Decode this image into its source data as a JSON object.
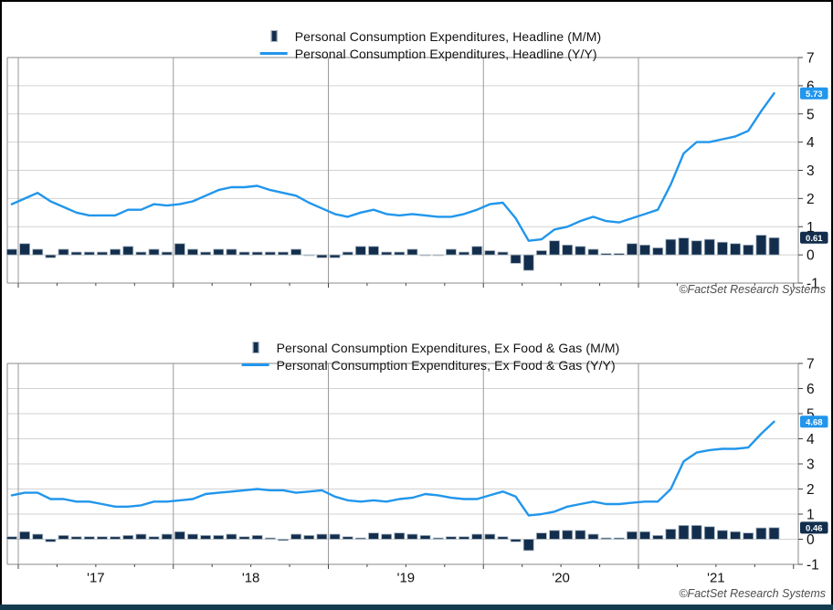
{
  "frame": {
    "background": "#ffffff",
    "border_color": "#000000",
    "footer_bar_color": "#123c4d"
  },
  "colors": {
    "bar": "#132e4d",
    "bar_outline": "#a9b7c2",
    "line": "#2196ec",
    "grid_minor": "#d2d2d2",
    "grid_year": "#9a9a9a",
    "plot_border": "#888888",
    "tick": "#444444",
    "axis_text": "#111111",
    "callout_text": "#ffffff"
  },
  "chart_data": [
    {
      "type": "bar+line combo",
      "title": "",
      "legend_position": "top-center",
      "grid": true,
      "ylim": [
        -1,
        7
      ],
      "yticks": [
        "7",
        "6",
        "5",
        "4",
        "3",
        "2",
        "1",
        "0",
        "-1"
      ],
      "xticks": [],
      "attribution": "©FactSet Research Systems",
      "categories": [
        "2016-12",
        "2017-01",
        "2017-02",
        "2017-03",
        "2017-04",
        "2017-05",
        "2017-06",
        "2017-07",
        "2017-08",
        "2017-09",
        "2017-10",
        "2017-11",
        "2017-12",
        "2018-01",
        "2018-02",
        "2018-03",
        "2018-04",
        "2018-05",
        "2018-06",
        "2018-07",
        "2018-08",
        "2018-09",
        "2018-10",
        "2018-11",
        "2018-12",
        "2019-01",
        "2019-02",
        "2019-03",
        "2019-04",
        "2019-05",
        "2019-06",
        "2019-07",
        "2019-08",
        "2019-09",
        "2019-10",
        "2019-11",
        "2019-12",
        "2020-01",
        "2020-02",
        "2020-03",
        "2020-04",
        "2020-05",
        "2020-06",
        "2020-07",
        "2020-08",
        "2020-09",
        "2020-10",
        "2020-11",
        "2020-12",
        "2021-01",
        "2021-02",
        "2021-03",
        "2021-04",
        "2021-05",
        "2021-06",
        "2021-07",
        "2021-08",
        "2021-09",
        "2021-10",
        "2021-11"
      ],
      "series": [
        {
          "name": "Personal Consumption Expenditures, Headline (M/M)",
          "type": "bar",
          "color": "#132e4d",
          "last_label": "0.61",
          "values": [
            0.2,
            0.4,
            0.2,
            -0.1,
            0.2,
            0.1,
            0.1,
            0.1,
            0.2,
            0.3,
            0.1,
            0.2,
            0.1,
            0.4,
            0.2,
            0.1,
            0.2,
            0.2,
            0.1,
            0.1,
            0.1,
            0.1,
            0.2,
            0.0,
            -0.1,
            -0.1,
            0.1,
            0.3,
            0.3,
            0.1,
            0.1,
            0.2,
            0.0,
            0.0,
            0.2,
            0.1,
            0.3,
            0.15,
            0.1,
            -0.3,
            -0.55,
            0.15,
            0.5,
            0.35,
            0.3,
            0.2,
            0.05,
            0.05,
            0.4,
            0.35,
            0.25,
            0.55,
            0.6,
            0.5,
            0.55,
            0.45,
            0.4,
            0.35,
            0.7,
            0.61
          ]
        },
        {
          "name": "Personal Consumption Expenditures, Headline (Y/Y)",
          "type": "line",
          "color": "#2196ec",
          "last_label": "5.73",
          "values": [
            1.8,
            2.0,
            2.2,
            1.9,
            1.7,
            1.5,
            1.4,
            1.4,
            1.4,
            1.6,
            1.6,
            1.8,
            1.75,
            1.8,
            1.9,
            2.1,
            2.3,
            2.4,
            2.4,
            2.45,
            2.3,
            2.2,
            2.1,
            1.85,
            1.65,
            1.45,
            1.35,
            1.5,
            1.6,
            1.45,
            1.4,
            1.45,
            1.4,
            1.35,
            1.35,
            1.45,
            1.6,
            1.8,
            1.85,
            1.3,
            0.5,
            0.55,
            0.9,
            1.0,
            1.2,
            1.35,
            1.2,
            1.15,
            1.3,
            1.45,
            1.6,
            2.5,
            3.6,
            4.0,
            4.0,
            4.1,
            4.2,
            4.4,
            5.1,
            5.73
          ]
        }
      ]
    },
    {
      "type": "bar+line combo",
      "title": "",
      "legend_position": "top-center",
      "grid": true,
      "ylim": [
        -1,
        7
      ],
      "yticks": [
        "7",
        "6",
        "5",
        "4",
        "3",
        "2",
        "1",
        "0",
        "-1"
      ],
      "xticks": [
        "'17",
        "'18",
        "'19",
        "'20",
        "'21"
      ],
      "attribution": "©FactSet Research Systems",
      "categories": [
        "2016-12",
        "2017-01",
        "2017-02",
        "2017-03",
        "2017-04",
        "2017-05",
        "2017-06",
        "2017-07",
        "2017-08",
        "2017-09",
        "2017-10",
        "2017-11",
        "2017-12",
        "2018-01",
        "2018-02",
        "2018-03",
        "2018-04",
        "2018-05",
        "2018-06",
        "2018-07",
        "2018-08",
        "2018-09",
        "2018-10",
        "2018-11",
        "2018-12",
        "2019-01",
        "2019-02",
        "2019-03",
        "2019-04",
        "2019-05",
        "2019-06",
        "2019-07",
        "2019-08",
        "2019-09",
        "2019-10",
        "2019-11",
        "2019-12",
        "2020-01",
        "2020-02",
        "2020-03",
        "2020-04",
        "2020-05",
        "2020-06",
        "2020-07",
        "2020-08",
        "2020-09",
        "2020-10",
        "2020-11",
        "2020-12",
        "2021-01",
        "2021-02",
        "2021-03",
        "2021-04",
        "2021-05",
        "2021-06",
        "2021-07",
        "2021-08",
        "2021-09",
        "2021-10",
        "2021-11"
      ],
      "series": [
        {
          "name": "Personal Consumption Expenditures, Ex Food & Gas (M/M)",
          "type": "bar",
          "color": "#132e4d",
          "last_label": "0.46",
          "values": [
            0.1,
            0.3,
            0.2,
            -0.1,
            0.15,
            0.1,
            0.1,
            0.1,
            0.1,
            0.15,
            0.2,
            0.1,
            0.2,
            0.3,
            0.2,
            0.15,
            0.15,
            0.2,
            0.1,
            0.15,
            0.05,
            -0.05,
            0.2,
            0.15,
            0.2,
            0.2,
            0.1,
            0.05,
            0.25,
            0.2,
            0.25,
            0.2,
            0.15,
            0.05,
            0.1,
            0.1,
            0.2,
            0.2,
            0.1,
            -0.1,
            -0.45,
            0.25,
            0.35,
            0.35,
            0.35,
            0.2,
            0.05,
            0.05,
            0.3,
            0.3,
            0.15,
            0.4,
            0.55,
            0.55,
            0.5,
            0.35,
            0.3,
            0.25,
            0.45,
            0.46
          ]
        },
        {
          "name": "Personal Consumption Expenditures, Ex Food & Gas (Y/Y)",
          "type": "line",
          "color": "#2196ec",
          "last_label": "4.68",
          "values": [
            1.75,
            1.85,
            1.85,
            1.6,
            1.6,
            1.5,
            1.5,
            1.4,
            1.3,
            1.3,
            1.35,
            1.5,
            1.5,
            1.55,
            1.6,
            1.8,
            1.85,
            1.9,
            1.95,
            2.0,
            1.95,
            1.95,
            1.85,
            1.9,
            1.95,
            1.7,
            1.55,
            1.5,
            1.55,
            1.5,
            1.6,
            1.65,
            1.8,
            1.75,
            1.65,
            1.6,
            1.6,
            1.75,
            1.9,
            1.7,
            0.95,
            1.0,
            1.1,
            1.3,
            1.4,
            1.5,
            1.4,
            1.4,
            1.45,
            1.5,
            1.5,
            2.0,
            3.1,
            3.45,
            3.55,
            3.6,
            3.6,
            3.65,
            4.2,
            4.68
          ]
        }
      ]
    }
  ]
}
